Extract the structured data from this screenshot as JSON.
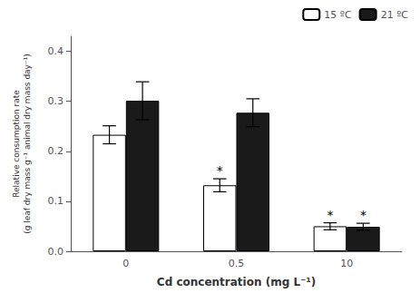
{
  "chart_data": {
    "type": "bar",
    "categories": [
      "0",
      "0.5",
      "10"
    ],
    "xlabel": "Cd concentration (mg L⁻¹)",
    "ylabel": "Relative consumption rate\n(g leaf dry mass g⁻¹ animal dry mass day⁻¹)",
    "series": [
      {
        "name": "15 ºC",
        "color": "#ffffff",
        "values": [
          0.233,
          0.132,
          0.05
        ],
        "errors": [
          0.018,
          0.013,
          0.007
        ]
      },
      {
        "name": "21 ºC",
        "color": "#1a1a1a",
        "values": [
          0.301,
          0.277,
          0.049
        ],
        "errors": [
          0.038,
          0.028,
          0.007
        ]
      }
    ],
    "annotations": [
      {
        "text": "*",
        "series": "15 ºC",
        "category": "0.5"
      },
      {
        "text": "*",
        "series": "15 ºC",
        "category": "10"
      },
      {
        "text": "*",
        "series": "21 ºC",
        "category": "10"
      }
    ],
    "ylim": [
      0,
      0.43
    ],
    "yticks": [
      {
        "value": 0,
        "label": "0.0"
      },
      0.1,
      0.2,
      0.3,
      0.4
    ],
    "grid": false,
    "legend": "upper right"
  }
}
